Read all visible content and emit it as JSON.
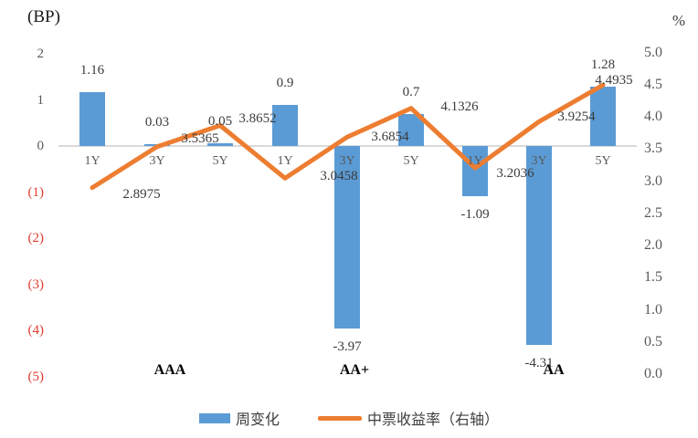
{
  "chart_data": {
    "type": "combo-bar-line",
    "title": "",
    "groups": [
      "AAA",
      "AA+",
      "AA"
    ],
    "categories": [
      "1Y",
      "3Y",
      "5Y",
      "1Y",
      "3Y",
      "5Y",
      "1Y",
      "3Y",
      "5Y"
    ],
    "series": [
      {
        "name": "周变化",
        "type": "bar",
        "axis": "left",
        "color": "#5b9bd5",
        "values": [
          1.16,
          0.03,
          0.05,
          0.9,
          -3.97,
          0.7,
          -1.09,
          -4.31,
          1.28
        ],
        "labels": [
          "1.16",
          "0.03",
          "0.05",
          "0.9",
          "-3.97",
          "0.7",
          "-1.09",
          "-4.31",
          "1.28"
        ]
      },
      {
        "name": "中票收益率（右轴）",
        "type": "line",
        "axis": "right",
        "color": "#ed7d31",
        "values": [
          2.8975,
          3.5365,
          3.8652,
          3.0458,
          3.6854,
          4.1326,
          3.2036,
          3.9254,
          4.4935
        ],
        "labels": [
          "2.8975",
          "3.5365",
          "3.8652",
          "3.0458",
          "3.6854",
          "4.1326",
          "3.2036",
          "3.9254",
          "4.4935"
        ]
      }
    ],
    "left_axis": {
      "title": "(BP)",
      "tick_labels": [
        "2",
        "1",
        "0",
        "(1)",
        "(2)",
        "(3)",
        "(4)",
        "(5)"
      ],
      "tick_values": [
        2,
        1,
        0,
        -1,
        -2,
        -3,
        -4,
        -5
      ],
      "range": [
        -5,
        2
      ],
      "negative_style": "red-parentheses"
    },
    "right_axis": {
      "title": "%",
      "tick_labels": [
        "5.0",
        "4.5",
        "4.0",
        "3.5",
        "3.0",
        "2.5",
        "2.0",
        "1.5",
        "1.0",
        "0.5",
        "0.0"
      ],
      "tick_values": [
        5,
        4.5,
        4,
        3.5,
        3,
        2.5,
        2,
        1.5,
        1,
        0.5,
        0
      ],
      "range": [
        0,
        5
      ]
    },
    "grid": "off",
    "legend_position": "bottom",
    "legend": [
      {
        "label": "周变化",
        "swatch": "bar",
        "color": "#5b9bd5"
      },
      {
        "label": "中票收益率（右轴）",
        "swatch": "line",
        "color": "#ed7d31"
      }
    ],
    "colors": {
      "bar": "#5b9bd5",
      "line": "#ed7d31",
      "axis_text": "#595959",
      "negative_tick_text": "#e23b2e",
      "data_label_text": "#3b3b3b",
      "zero_line": "#dadada",
      "background": "#ffffff"
    }
  }
}
